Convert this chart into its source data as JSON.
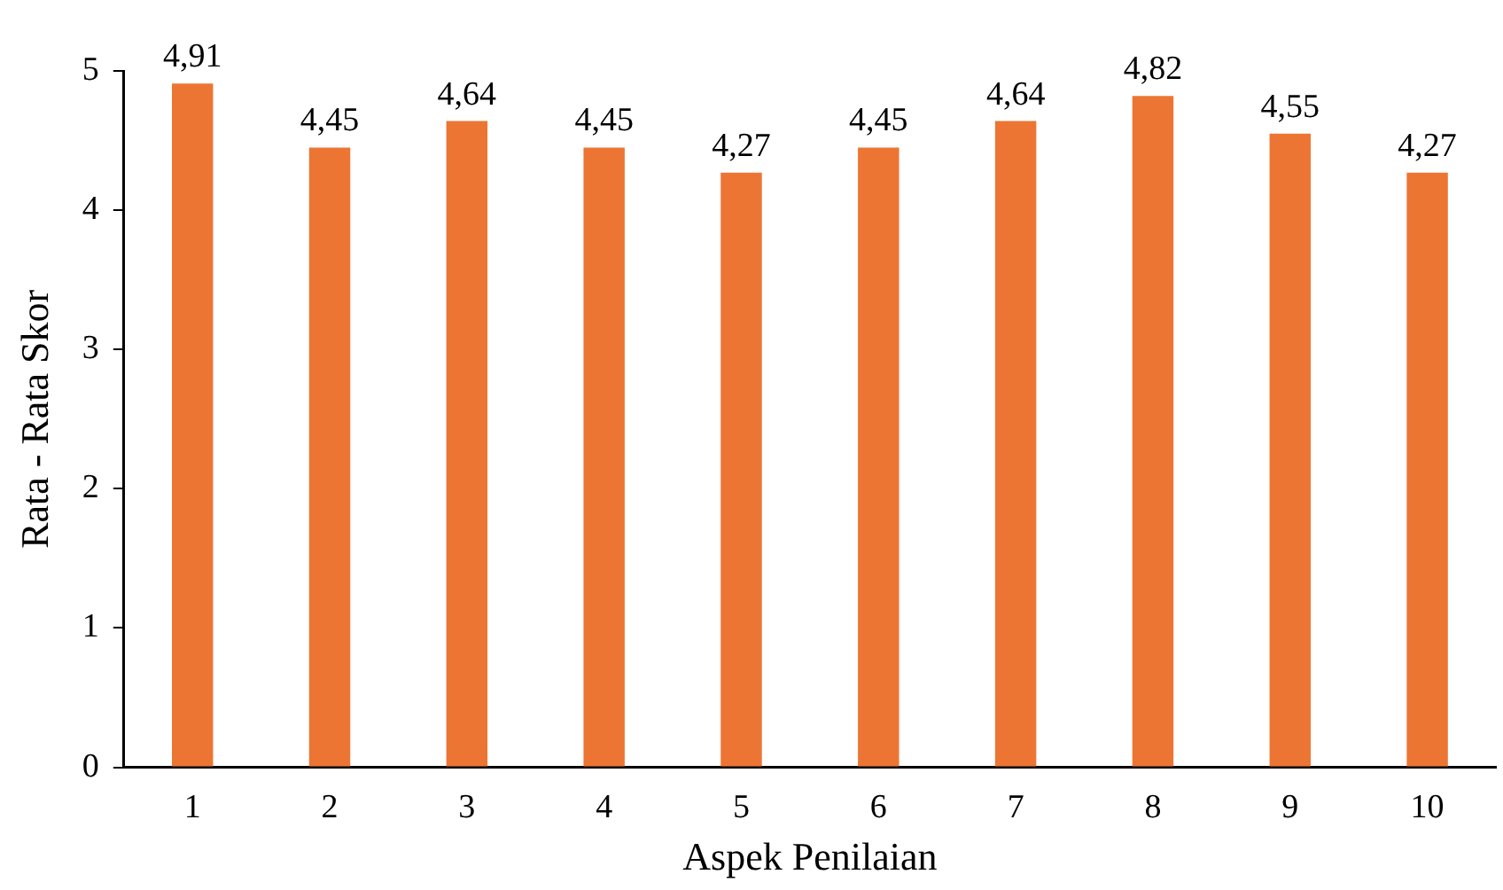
{
  "chart_data": {
    "type": "bar",
    "xlabel": "Aspek Penilaian",
    "ylabel": "Rata - Rata Skor",
    "categories": [
      "1",
      "2",
      "3",
      "4",
      "5",
      "6",
      "7",
      "8",
      "9",
      "10"
    ],
    "values": [
      4.91,
      4.45,
      4.64,
      4.45,
      4.27,
      4.45,
      4.64,
      4.82,
      4.55,
      4.27
    ],
    "value_labels": [
      "4,91",
      "4,45",
      "4,64",
      "4,45",
      "4,27",
      "4,45",
      "4,64",
      "4,82",
      "4,55",
      "4,27"
    ],
    "color": "#ed7533",
    "ylim": [
      0,
      5
    ],
    "yticks": [
      0,
      1,
      2,
      3,
      4,
      5
    ],
    "grid": false,
    "legend": false
  }
}
